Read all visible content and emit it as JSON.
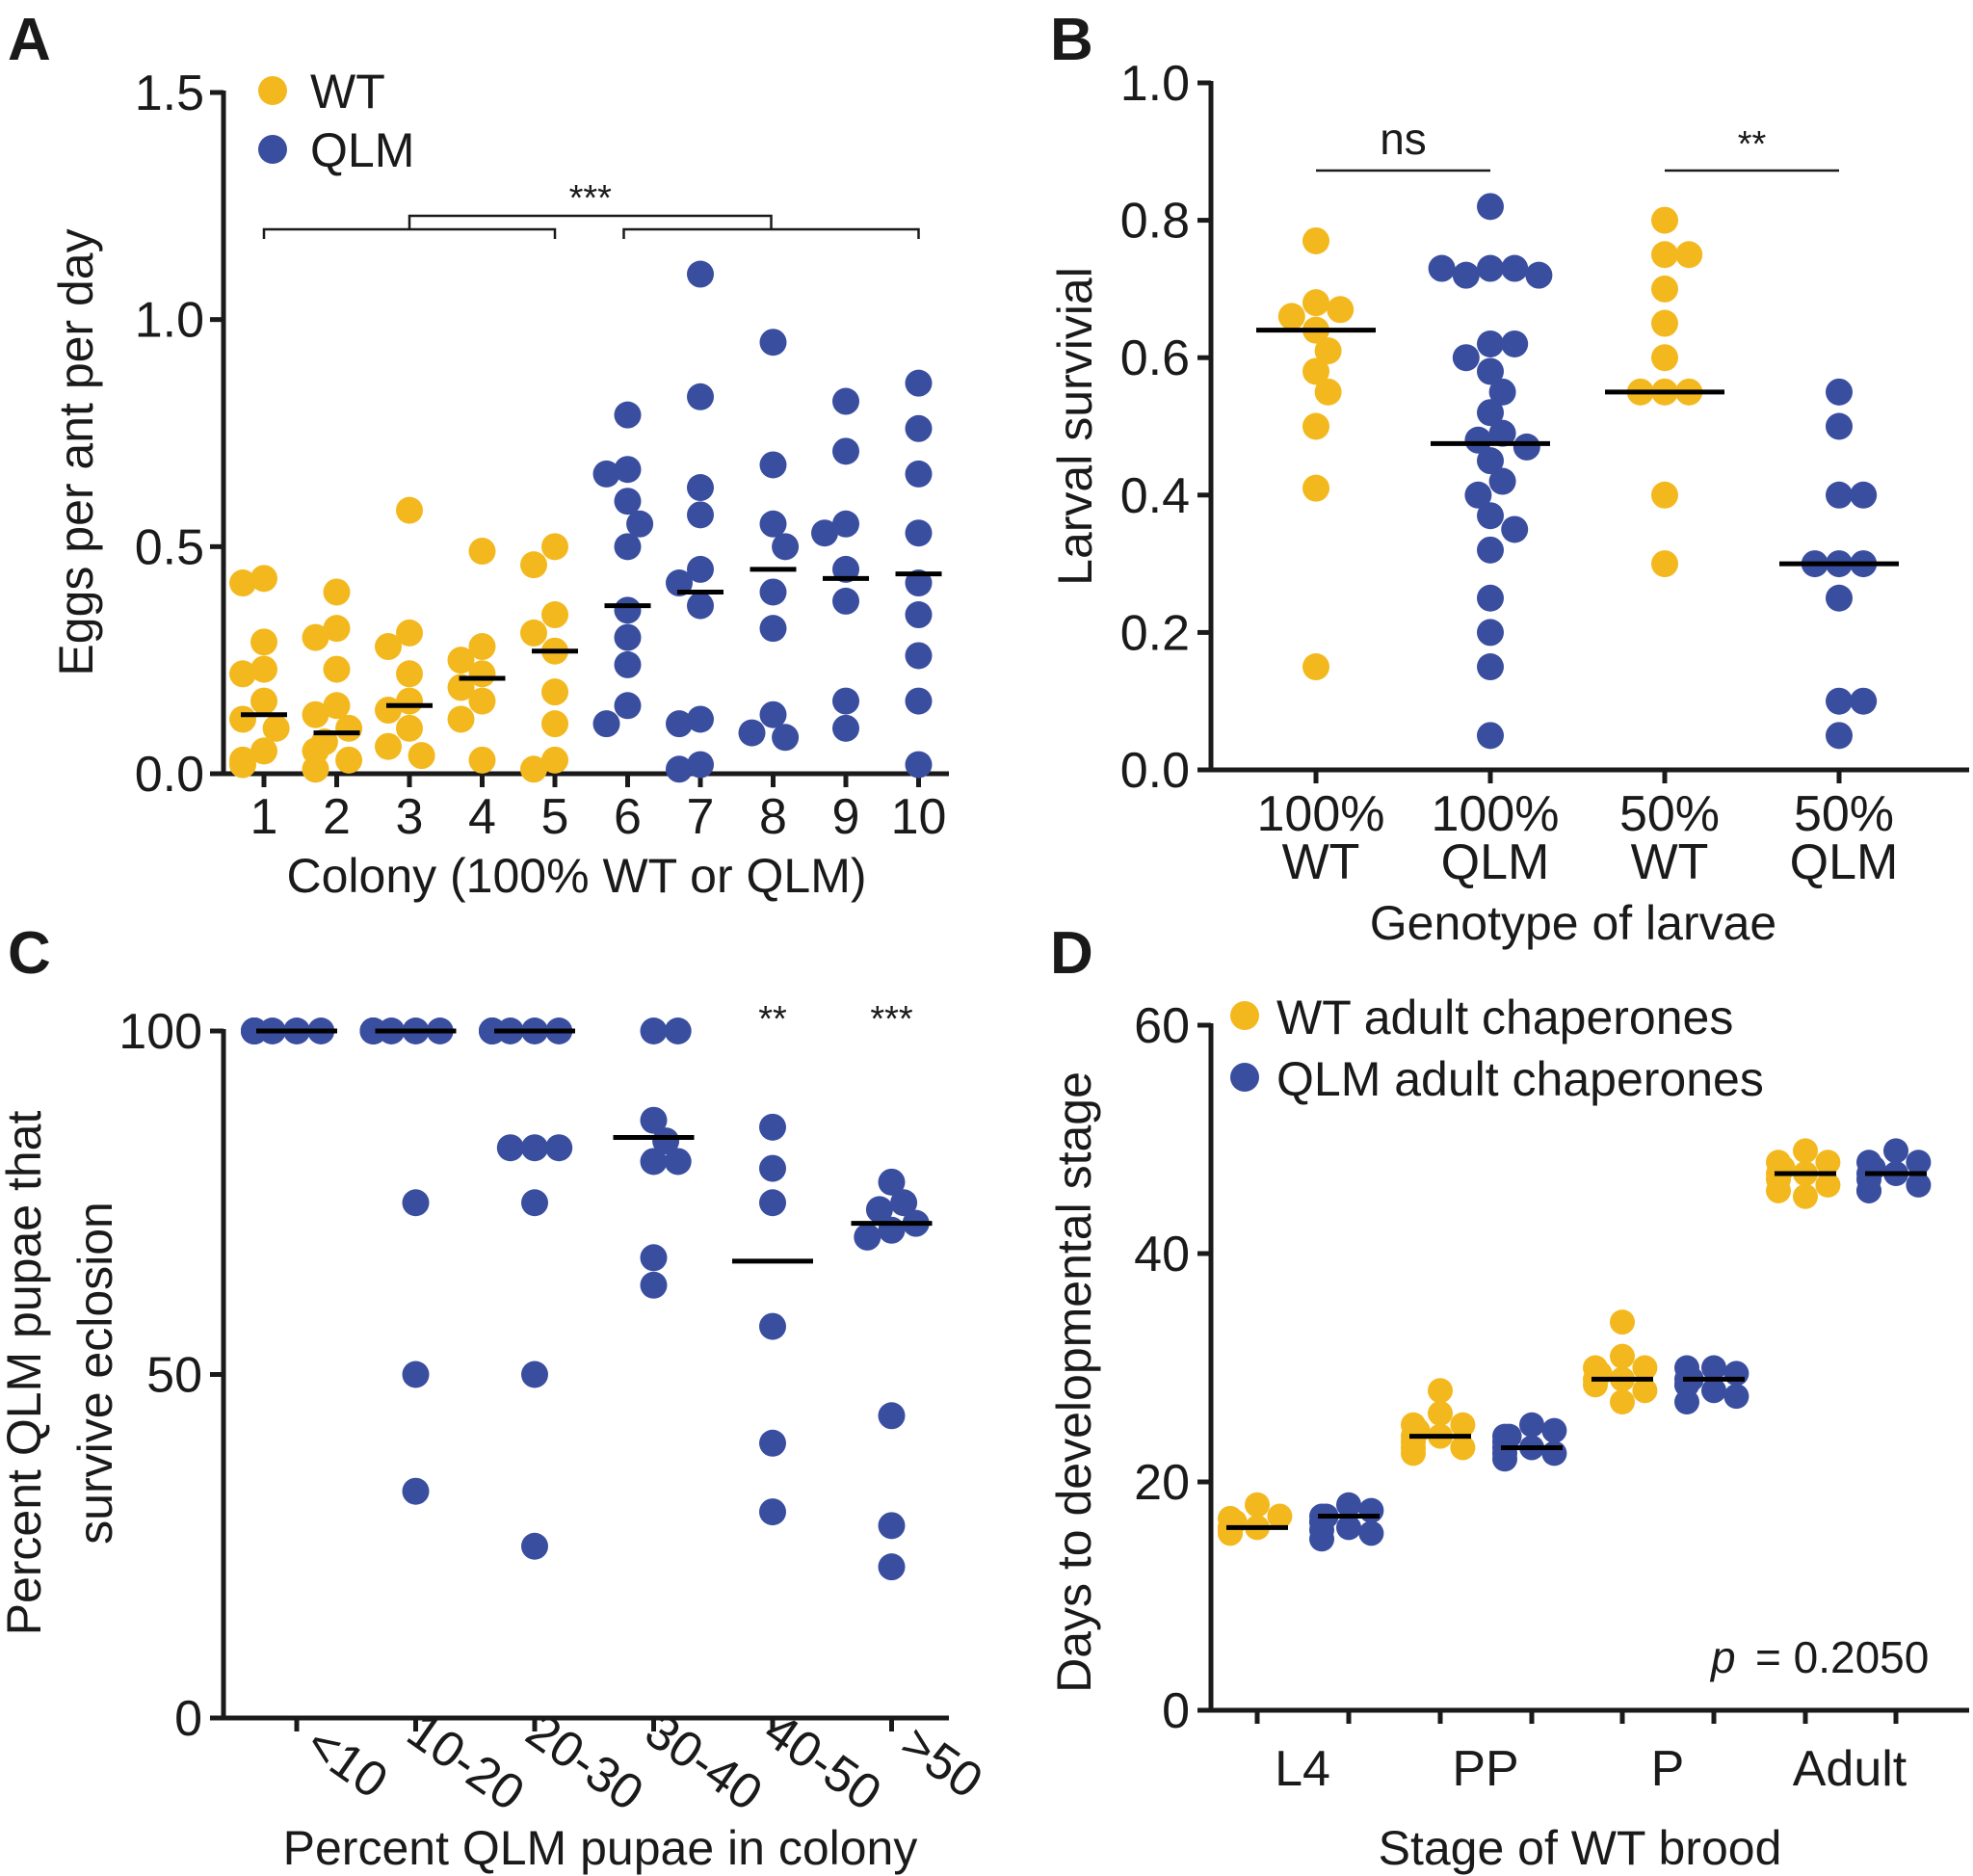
{
  "colors": {
    "wt": "#f4b81f",
    "qlm": "#3a4ea0"
  },
  "chart_data": [
    {
      "panel": "A",
      "type": "scatter",
      "ylabel": "Eggs per ant per day",
      "xlabel": "Colony (100% WT or QLM)",
      "ylim": [
        0,
        1.5
      ],
      "yticks": [
        "0.0",
        "0.5",
        "1.0",
        "1.5"
      ],
      "ytick_values": [
        0,
        0.5,
        1.0,
        1.5
      ],
      "categories": [
        "1",
        "2",
        "3",
        "4",
        "5",
        "6",
        "7",
        "8",
        "9",
        "10"
      ],
      "legend": [
        "WT",
        "QLM"
      ],
      "significance": "***",
      "groups": [
        {
          "category": "1",
          "genotype": "WT",
          "median": 0.13,
          "points": [
            0.43,
            0.42,
            0.29,
            0.23,
            0.22,
            0.16,
            0.12,
            0.1,
            0.05,
            0.03,
            0.02
          ]
        },
        {
          "category": "2",
          "genotype": "WT",
          "median": 0.09,
          "points": [
            0.4,
            0.32,
            0.3,
            0.23,
            0.15,
            0.13,
            0.1,
            0.07,
            0.05,
            0.03,
            0.01
          ]
        },
        {
          "category": "3",
          "genotype": "WT",
          "median": 0.15,
          "points": [
            0.58,
            0.31,
            0.28,
            0.22,
            0.16,
            0.14,
            0.1,
            0.06,
            0.04
          ]
        },
        {
          "category": "4",
          "genotype": "WT",
          "median": 0.21,
          "points": [
            0.49,
            0.28,
            0.25,
            0.22,
            0.19,
            0.16,
            0.12,
            0.03
          ]
        },
        {
          "category": "5",
          "genotype": "WT",
          "median": 0.27,
          "points": [
            0.5,
            0.46,
            0.35,
            0.31,
            0.27,
            0.18,
            0.11,
            0.03,
            0.01
          ]
        },
        {
          "category": "6",
          "genotype": "QLM",
          "median": 0.37,
          "points": [
            0.79,
            0.67,
            0.66,
            0.6,
            0.55,
            0.5,
            0.36,
            0.3,
            0.24,
            0.15,
            0.11
          ]
        },
        {
          "category": "7",
          "genotype": "QLM",
          "median": 0.4,
          "points": [
            1.1,
            0.83,
            0.63,
            0.57,
            0.45,
            0.42,
            0.37,
            0.12,
            0.11,
            0.02,
            0.01
          ]
        },
        {
          "category": "8",
          "genotype": "QLM",
          "median": 0.45,
          "points": [
            0.95,
            0.68,
            0.55,
            0.5,
            0.4,
            0.32,
            0.13,
            0.09,
            0.08
          ]
        },
        {
          "category": "9",
          "genotype": "QLM",
          "median": 0.43,
          "points": [
            0.82,
            0.71,
            0.55,
            0.53,
            0.45,
            0.38,
            0.16,
            0.1
          ]
        },
        {
          "category": "10",
          "genotype": "QLM",
          "median": 0.44,
          "points": [
            0.86,
            0.76,
            0.66,
            0.53,
            0.42,
            0.35,
            0.26,
            0.16,
            0.02
          ]
        }
      ]
    },
    {
      "panel": "B",
      "type": "scatter",
      "ylabel": "Larval survivial",
      "xlabel": "Genotype of larvae",
      "ylim": [
        0,
        1.0
      ],
      "yticks": [
        "0.0",
        "0.2",
        "0.4",
        "0.6",
        "0.8",
        "1.0"
      ],
      "ytick_values": [
        0,
        0.2,
        0.4,
        0.6,
        0.8,
        1.0
      ],
      "categories": [
        {
          "line1": "100%",
          "line2": "WT",
          "genotype": "WT"
        },
        {
          "line1": "100%",
          "line2": "QLM",
          "genotype": "QLM"
        },
        {
          "line1": "50%",
          "line2": "WT",
          "genotype": "WT"
        },
        {
          "line1": "50%",
          "line2": "QLM",
          "genotype": "QLM"
        }
      ],
      "comparisons": [
        {
          "between": [
            1,
            2
          ],
          "label": "ns"
        },
        {
          "between": [
            3,
            4
          ],
          "label": "**"
        }
      ],
      "groups": [
        {
          "median": 0.64,
          "points": [
            0.77,
            0.68,
            0.67,
            0.66,
            0.64,
            0.61,
            0.58,
            0.55,
            0.5,
            0.41,
            0.15
          ]
        },
        {
          "median": 0.475,
          "points": [
            0.82,
            0.73,
            0.73,
            0.72,
            0.72,
            0.73,
            0.62,
            0.62,
            0.6,
            0.58,
            0.55,
            0.52,
            0.49,
            0.48,
            0.47,
            0.45,
            0.42,
            0.4,
            0.37,
            0.35,
            0.32,
            0.25,
            0.2,
            0.15,
            0.05
          ]
        },
        {
          "median": 0.55,
          "points": [
            0.8,
            0.75,
            0.75,
            0.7,
            0.65,
            0.6,
            0.55,
            0.55,
            0.55,
            0.4,
            0.3
          ]
        },
        {
          "median": 0.3,
          "points": [
            0.55,
            0.5,
            0.4,
            0.4,
            0.3,
            0.3,
            0.3,
            0.25,
            0.1,
            0.1,
            0.05
          ]
        }
      ]
    },
    {
      "panel": "C",
      "type": "scatter",
      "ylabel_line1": "Percent QLM pupae that",
      "ylabel_line2": "survive eclosion",
      "xlabel": "Percent QLM pupae in colony",
      "ylim": [
        0,
        100
      ],
      "yticks": [
        "0",
        "50",
        "100"
      ],
      "ytick_values": [
        0,
        50,
        100
      ],
      "categories": [
        "<10",
        "10-20",
        "20-30",
        "30-40",
        "40-50",
        ">50"
      ],
      "significance": [
        "",
        "",
        "",
        "",
        "**",
        "***"
      ],
      "groups": [
        {
          "median": 100,
          "points": [
            100,
            100,
            100,
            100,
            100,
            100,
            100,
            100,
            100,
            100
          ]
        },
        {
          "median": 100,
          "points": [
            100,
            100,
            100,
            100,
            100,
            100,
            100,
            100,
            75,
            50,
            33
          ]
        },
        {
          "median": 100,
          "points": [
            100,
            100,
            100,
            100,
            100,
            100,
            100,
            83,
            83,
            83,
            75,
            50,
            25
          ]
        },
        {
          "median": 84.5,
          "points": [
            100,
            100,
            87,
            84,
            81,
            81,
            67,
            63
          ]
        },
        {
          "median": 66.5,
          "points": [
            86,
            80,
            75,
            57,
            40,
            30
          ]
        },
        {
          "median": 72,
          "points": [
            78,
            75,
            74,
            72,
            71,
            70,
            44,
            28,
            22
          ]
        }
      ]
    },
    {
      "panel": "D",
      "type": "scatter",
      "ylabel": "Days to developmental stage",
      "xlabel": "Stage of WT brood",
      "ylim": [
        0,
        60
      ],
      "yticks": [
        "0",
        "20",
        "40",
        "60"
      ],
      "ytick_values": [
        0,
        20,
        40,
        60
      ],
      "categories": [
        "L4",
        "PP",
        "P",
        "Adult"
      ],
      "legend": [
        "WT adult chaperones",
        "QLM adult chaperones"
      ],
      "annotation_p": "p",
      "annotation_value": "= 0.2050",
      "groups": [
        {
          "category": "L4",
          "chaperones": "WT",
          "median": 16,
          "points": [
            18,
            17,
            16.5,
            16,
            16,
            16,
            15.5,
            16,
            16.8,
            15.8
          ]
        },
        {
          "category": "L4",
          "chaperones": "QLM",
          "median": 17,
          "points": [
            18,
            17.5,
            17,
            16.5,
            16,
            15.5,
            15,
            17,
            16.5,
            15.8
          ]
        },
        {
          "category": "PP",
          "chaperones": "WT",
          "median": 24,
          "points": [
            28,
            26,
            25,
            24.5,
            24,
            23.5,
            23,
            22.5,
            24,
            25,
            23
          ]
        },
        {
          "category": "PP",
          "chaperones": "QLM",
          "median": 23,
          "points": [
            25,
            24.5,
            24,
            23.5,
            23,
            22.5,
            22,
            24,
            23,
            22.5
          ]
        },
        {
          "category": "P",
          "chaperones": "WT",
          "median": 29,
          "points": [
            34,
            31,
            30,
            29.5,
            29,
            28.5,
            28,
            27,
            29,
            30
          ]
        },
        {
          "category": "P",
          "chaperones": "QLM",
          "median": 29,
          "points": [
            30,
            29.5,
            29,
            28.5,
            28,
            27.5,
            27,
            29,
            28.5,
            30
          ]
        },
        {
          "category": "Adult",
          "chaperones": "WT",
          "median": 47,
          "points": [
            49,
            48,
            47.5,
            47,
            46.5,
            46,
            45.5,
            45,
            47,
            48
          ]
        },
        {
          "category": "Adult",
          "chaperones": "QLM",
          "median": 47,
          "points": [
            49,
            48,
            47.5,
            47,
            46.5,
            46,
            45.5,
            45.5,
            47,
            48
          ]
        }
      ]
    }
  ],
  "panels": {
    "A": {
      "letter": "A"
    },
    "B": {
      "letter": "B"
    },
    "C": {
      "letter": "C"
    },
    "D": {
      "letter": "D"
    }
  }
}
